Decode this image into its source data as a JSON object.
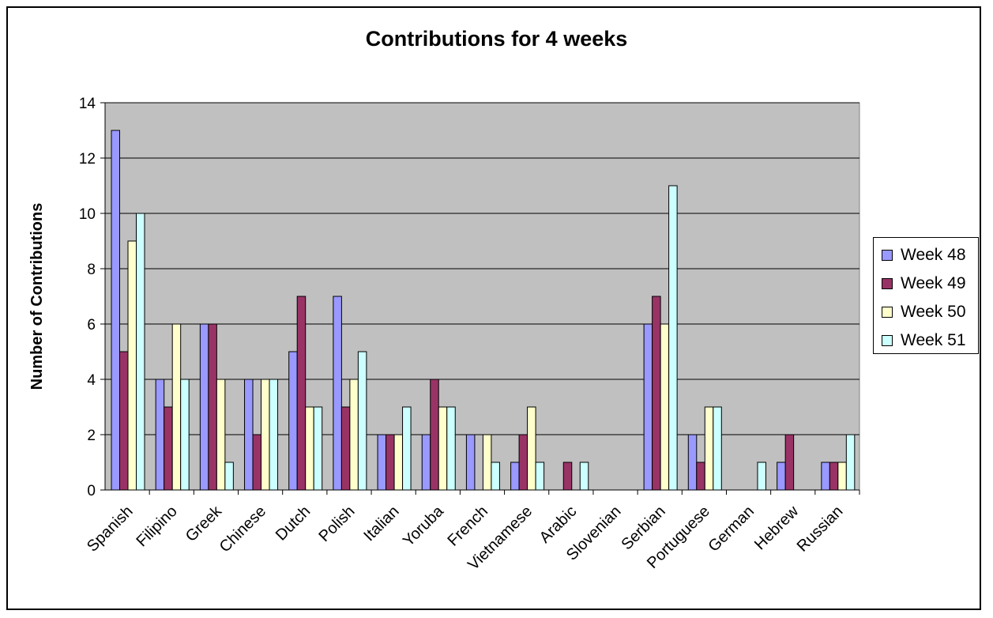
{
  "chart_data": {
    "type": "bar",
    "title": "Contributions for 4 weeks",
    "xlabel": "",
    "ylabel": "Number of Contributions",
    "ylim": [
      0,
      14
    ],
    "yticks": [
      0,
      2,
      4,
      6,
      8,
      10,
      12,
      14
    ],
    "grid": true,
    "legend_position": "right",
    "categories": [
      "Spanish",
      "Filipino",
      "Greek",
      "Chinese",
      "Dutch",
      "Polish",
      "Italian",
      "Yoruba",
      "French",
      "Vietnamese",
      "Arabic",
      "Slovenian",
      "Serbian",
      "Portuguese",
      "German",
      "Hebrew",
      "Russian"
    ],
    "series": [
      {
        "name": "Week 48",
        "color": "#9999ff",
        "values": [
          13,
          4,
          6,
          4,
          5,
          7,
          2,
          2,
          2,
          1,
          0,
          0,
          6,
          2,
          0,
          1,
          1
        ]
      },
      {
        "name": "Week 49",
        "color": "#993366",
        "values": [
          5,
          3,
          6,
          2,
          7,
          3,
          2,
          4,
          0,
          2,
          1,
          0,
          7,
          1,
          0,
          2,
          1
        ]
      },
      {
        "name": "Week 50",
        "color": "#ffffcc",
        "values": [
          9,
          6,
          4,
          4,
          3,
          4,
          2,
          3,
          2,
          3,
          0,
          0,
          6,
          3,
          0,
          0,
          1
        ]
      },
      {
        "name": "Week 51",
        "color": "#ccffff",
        "values": [
          10,
          4,
          1,
          4,
          3,
          5,
          3,
          3,
          1,
          1,
          1,
          0,
          11,
          3,
          1,
          0,
          2
        ]
      }
    ]
  }
}
